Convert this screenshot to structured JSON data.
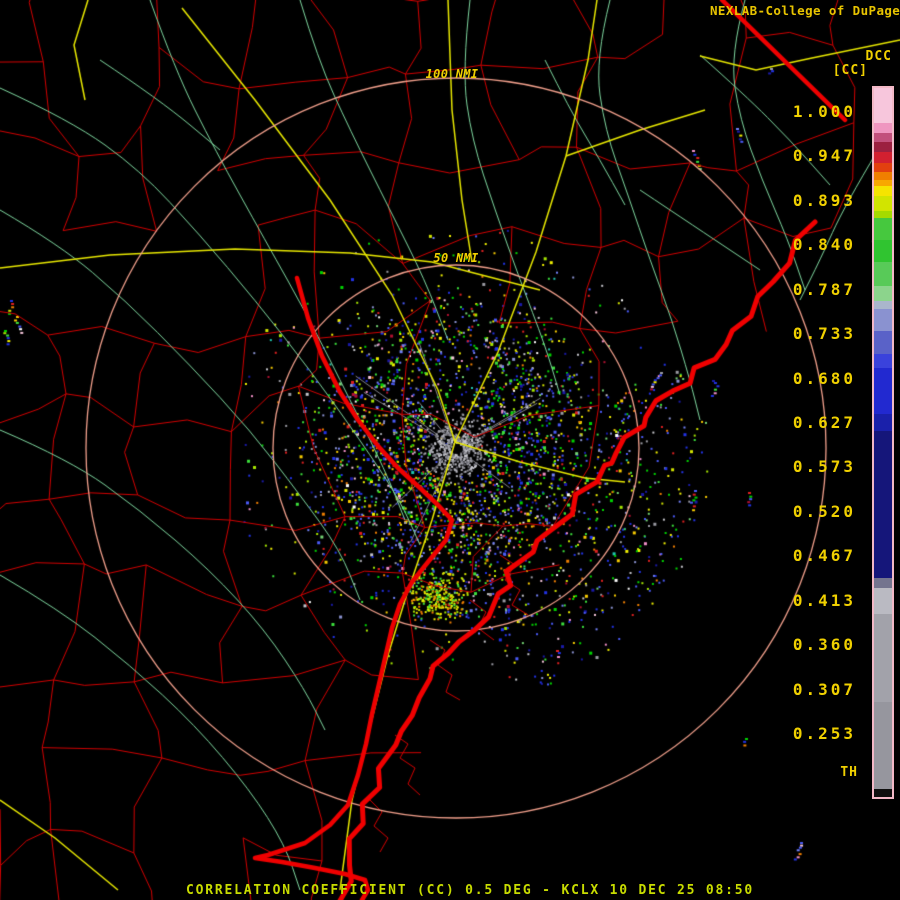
{
  "title": {
    "text": "NEXLAB-College of DuPage Ra"
  },
  "footer": {
    "text": "CORRELATION COEFFICIENT (CC) 0.5 DEG - KCLX 10 DEC 25 08:50"
  },
  "colorbar": {
    "product_label": "DCC",
    "unit_label": "[CC]",
    "threshold_label": "TH",
    "tick_labels": [
      "1.000",
      "0.947",
      "0.893",
      "0.840",
      "0.787",
      "0.733",
      "0.680",
      "0.627",
      "0.573",
      "0.520",
      "0.467",
      "0.413",
      "0.360",
      "0.307",
      "0.253"
    ],
    "segments": [
      {
        "from": 88,
        "to": 123,
        "color": "#f7c6dc"
      },
      {
        "from": 123,
        "to": 133,
        "color": "#ef96c0"
      },
      {
        "from": 133,
        "to": 142,
        "color": "#c2507c"
      },
      {
        "from": 142,
        "to": 152,
        "color": "#9c2040"
      },
      {
        "from": 152,
        "to": 163,
        "color": "#d22030"
      },
      {
        "from": 163,
        "to": 172,
        "color": "#e2400f"
      },
      {
        "from": 172,
        "to": 180,
        "color": "#f07f00"
      },
      {
        "from": 180,
        "to": 186,
        "color": "#f8a800"
      },
      {
        "from": 186,
        "to": 196,
        "color": "#f6e400"
      },
      {
        "from": 196,
        "to": 211,
        "color": "#d2e400"
      },
      {
        "from": 211,
        "to": 218,
        "color": "#a6da00"
      },
      {
        "from": 218,
        "to": 240,
        "color": "#46c83e"
      },
      {
        "from": 240,
        "to": 262,
        "color": "#30c430"
      },
      {
        "from": 262,
        "to": 286,
        "color": "#58ca58"
      },
      {
        "from": 286,
        "to": 301,
        "color": "#8cd48c"
      },
      {
        "from": 301,
        "to": 309,
        "color": "#aab6cc"
      },
      {
        "from": 309,
        "to": 331,
        "color": "#8a92d0"
      },
      {
        "from": 331,
        "to": 354,
        "color": "#5a62c8"
      },
      {
        "from": 354,
        "to": 368,
        "color": "#3a42dc"
      },
      {
        "from": 368,
        "to": 414,
        "color": "#2229d0"
      },
      {
        "from": 414,
        "to": 431,
        "color": "#1a20aa"
      },
      {
        "from": 431,
        "to": 578,
        "color": "#15167a"
      },
      {
        "from": 578,
        "to": 588,
        "color": "#74748e"
      },
      {
        "from": 588,
        "to": 614,
        "color": "#babac2"
      },
      {
        "from": 614,
        "to": 702,
        "color": "#a2a2aa"
      },
      {
        "from": 702,
        "to": 789,
        "color": "#96969e"
      },
      {
        "from": 789,
        "to": 797,
        "color": "#0e0e0e"
      }
    ]
  },
  "rings": {
    "outer_label": "100 NMI",
    "inner_label": "50 NMI",
    "color": "#f2a08c"
  },
  "map_colors": {
    "background": "#000000",
    "county_border": "#d40000",
    "state_border": "#ef0000",
    "coastline": "#f00000",
    "river": "#7fd8a0",
    "highway": "#e8e800",
    "range_ring": "#f2a08c",
    "clutter_gray": "#9c9ca4"
  },
  "radar_palette": [
    "#2233e6",
    "#4a5af6",
    "#1a1aa8",
    "#7280f8",
    "#00d400",
    "#3ce03c",
    "#a6e600",
    "#74d474",
    "#f2f200",
    "#f8cc00",
    "#f07f00",
    "#e02020",
    "#b01030",
    "#f090c8",
    "#f6c6dc",
    "#9a9aa2",
    "#c6c6cc",
    "#8a92d0",
    "#ffffff",
    "#20c8b0",
    "#d2e400"
  ]
}
